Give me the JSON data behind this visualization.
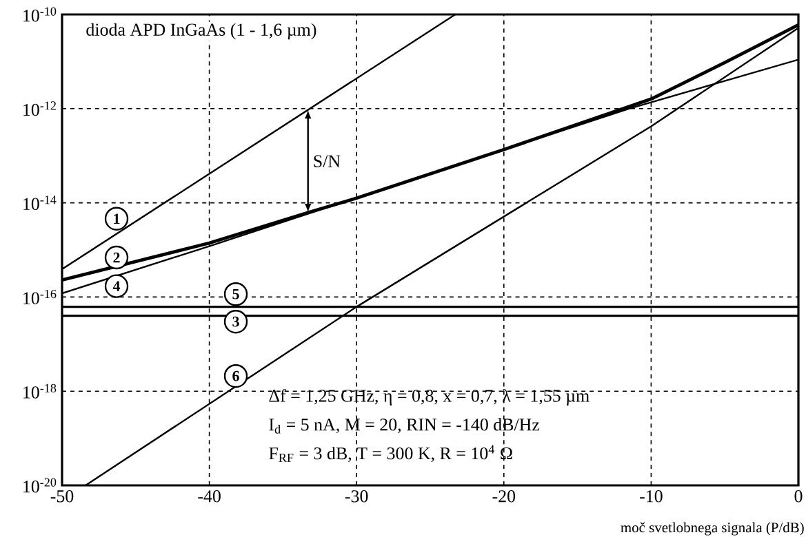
{
  "chart_data": {
    "type": "line",
    "title": "dioda APD InGaAs (1 - 1,6 µm)",
    "xlabel": "moč svetlobnega signala (P/dB)",
    "log": "y",
    "grid": true,
    "xlim": [
      -50,
      0
    ],
    "ylim": [
      1e-20,
      1e-10
    ],
    "xticks": [
      -50,
      -40,
      -30,
      -20,
      -10,
      0
    ],
    "yticks": [
      {
        "value": 1e-20,
        "label": "10$^{-20}$"
      },
      {
        "value": 1e-18,
        "label": "10$^{-18}$"
      },
      {
        "value": 1e-16,
        "label": "10$^{-16}$"
      },
      {
        "value": 1e-14,
        "label": "10$^{-14}$"
      },
      {
        "value": 1e-12,
        "label": "10$^{-12}$"
      },
      {
        "value": 1e-10,
        "label": "10$^{-10}$"
      }
    ],
    "series": [
      {
        "color": "#000000",
        "x": [
          -50,
          -23.3
        ],
        "values": [
          3.9e-16,
          1e-10
        ]
      },
      {
        "color": "#000000",
        "x": [
          -50,
          -40,
          -33.3,
          -30,
          -20,
          -10,
          -5,
          0
        ],
        "values": [
          2.3e-16,
          1.4e-15,
          6.2e-15,
          1.26e-14,
          1.35e-13,
          1.6e-12,
          9.5e-12,
          6e-11
        ]
      },
      {
        "color": "#000000",
        "x": [
          -50,
          0
        ],
        "values": [
          4e-17,
          4e-17
        ]
      },
      {
        "color": "#000000",
        "x": [
          -50,
          -40,
          -11.5,
          0
        ],
        "values": [
          1.2e-16,
          1.2e-15,
          1e-12,
          1.1e-11
        ]
      },
      {
        "color": "#000000",
        "x": [
          -50,
          0
        ],
        "values": [
          6.2e-17,
          6.2e-17
        ]
      },
      {
        "color": "#000000",
        "x": [
          -48.4,
          -30,
          -10,
          0
        ],
        "values": [
          1e-20,
          6.2e-17,
          4.2e-13,
          5.2e-11
        ]
      }
    ],
    "annotations": [
      {
        "text": "1",
        "x": -46.3,
        "y": 4.6e-15
      },
      {
        "text": "2",
        "x": -46.3,
        "y": 6.9e-16
      },
      {
        "text": "4",
        "x": -46.3,
        "y": 1.7e-16
      },
      {
        "text": "5",
        "x": -38.2,
        "y": 1.15e-16
      },
      {
        "text": "3",
        "x": -38.2,
        "y": 3e-17
      },
      {
        "text": "6",
        "x": -38.2,
        "y": 2.1e-18
      },
      {
        "text": "S/N",
        "x": -33.3,
        "y": 6.2e-15
      },
      "Δf = 1,25 GHz,  η = 0,8,  x = 0,7,  λ = 1,55 µm",
      "I$_{d}$ = 5 nA,  M = 20,  RIN = -140 dB/Hz",
      "F$_{RF}$ = 3 dB,  T = 300 K,  R = 10$^{4}$ Ω"
    ]
  }
}
